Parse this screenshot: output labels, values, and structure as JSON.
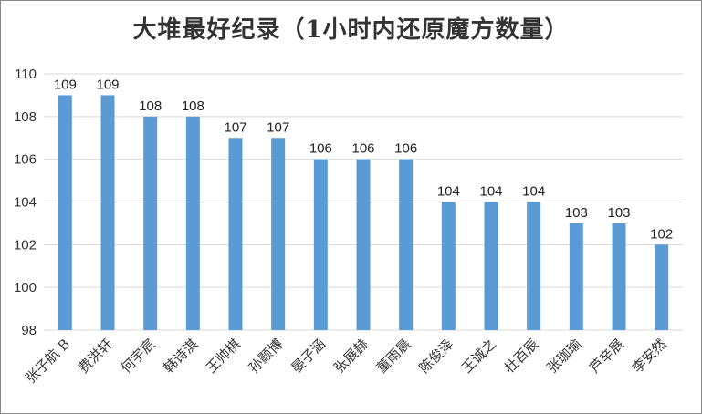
{
  "chart_data": {
    "type": "bar",
    "title": "大堆最好纪录（1小时内还原魔方数量）",
    "xlabel": "",
    "ylabel": "",
    "categories": [
      "张子航 B",
      "费洪轩",
      "何宇宸",
      "韩诗淇",
      "王帅棋",
      "孙颢博",
      "晏子涵",
      "张展赫",
      "董雨晨",
      "陈俊泽",
      "王诚之",
      "杜百辰",
      "张珈瑜",
      "芦辛展",
      "李安然"
    ],
    "values": [
      109,
      109,
      108,
      108,
      107,
      107,
      106,
      106,
      106,
      104,
      104,
      104,
      103,
      103,
      102
    ],
    "ylim": [
      98,
      110
    ],
    "yticks": [
      98,
      100,
      102,
      104,
      106,
      108,
      110
    ],
    "grid": true,
    "legend": "none",
    "bar_color": "#5b9bd5"
  }
}
